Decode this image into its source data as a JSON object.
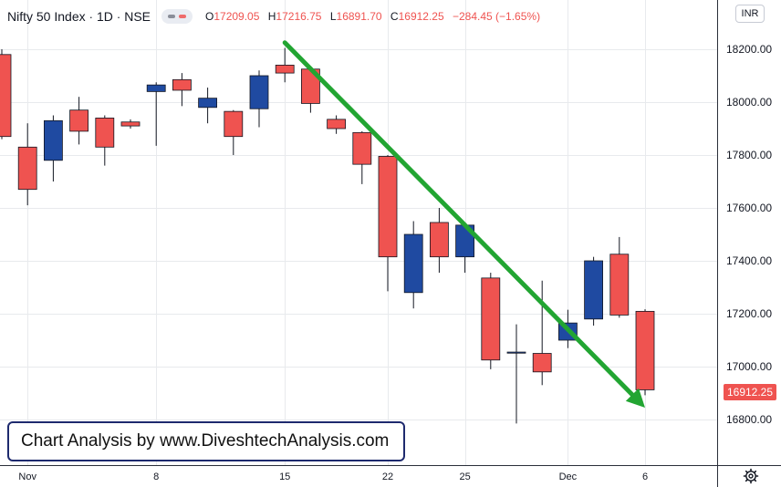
{
  "header": {
    "symbol": "Nifty 50 Index",
    "interval": "1D",
    "exchange": "NSE",
    "separator": "·",
    "open_label": "O",
    "open": "17209.05",
    "high_label": "H",
    "high": "17216.75",
    "low_label": "L",
    "low": "16891.70",
    "close_label": "C",
    "close": "16912.25",
    "change": "−284.45 (−1.65%)"
  },
  "currency_button": "INR",
  "last_price": "16912.25",
  "watermark": "Chart Analysis by www.DiveshtechAnalysis.com",
  "colors": {
    "up": "#1f4aa1",
    "down": "#ef5350",
    "trend_arrow": "#22a532",
    "grid": "#e8eaed",
    "axis_border": "#2a2e39"
  },
  "icons": {
    "settings": "gear-icon"
  },
  "chart_data": {
    "type": "candlestick",
    "ylim": [
      16620,
      18270
    ],
    "y_ticks": [
      {
        "value": 16800,
        "label": "16800.00"
      },
      {
        "value": 17000,
        "label": "17000.00"
      },
      {
        "value": 17200,
        "label": "17200.00"
      },
      {
        "value": 17400,
        "label": "17400.00"
      },
      {
        "value": 17600,
        "label": "17600.00"
      },
      {
        "value": 17800,
        "label": "17800.00"
      },
      {
        "value": 18000,
        "label": "18000.00"
      },
      {
        "value": 18200,
        "label": "18200.00"
      }
    ],
    "x_ticks": [
      {
        "index": 1,
        "label": "Nov"
      },
      {
        "index": 6,
        "label": "8"
      },
      {
        "index": 11,
        "label": "15"
      },
      {
        "index": 15,
        "label": "22"
      },
      {
        "index": 18,
        "label": "25"
      },
      {
        "index": 22,
        "label": "Dec"
      },
      {
        "index": 25,
        "label": "6"
      }
    ],
    "candles": [
      {
        "o": 18180,
        "h": 18200,
        "l": 17860,
        "c": 17870
      },
      {
        "o": 17830,
        "h": 17920,
        "l": 17610,
        "c": 17670
      },
      {
        "o": 17780,
        "h": 17950,
        "l": 17700,
        "c": 17930
      },
      {
        "o": 17970,
        "h": 18020,
        "l": 17840,
        "c": 17890
      },
      {
        "o": 17940,
        "h": 17950,
        "l": 17760,
        "c": 17830
      },
      {
        "o": 17925,
        "h": 17935,
        "l": 17900,
        "c": 17910
      },
      {
        "o": 18040,
        "h": 18075,
        "l": 17835,
        "c": 18065
      },
      {
        "o": 18085,
        "h": 18110,
        "l": 17985,
        "c": 18045
      },
      {
        "o": 17980,
        "h": 18055,
        "l": 17920,
        "c": 18015
      },
      {
        "o": 17965,
        "h": 17970,
        "l": 17800,
        "c": 17870
      },
      {
        "o": 17975,
        "h": 18120,
        "l": 17905,
        "c": 18100
      },
      {
        "o": 18140,
        "h": 18205,
        "l": 18075,
        "c": 18110
      },
      {
        "o": 18125,
        "h": 18130,
        "l": 17960,
        "c": 17995
      },
      {
        "o": 17935,
        "h": 17950,
        "l": 17880,
        "c": 17900
      },
      {
        "o": 17885,
        "h": 17890,
        "l": 17690,
        "c": 17765
      },
      {
        "o": 17795,
        "h": 17800,
        "l": 17285,
        "c": 17415
      },
      {
        "o": 17280,
        "h": 17550,
        "l": 17220,
        "c": 17500
      },
      {
        "o": 17545,
        "h": 17600,
        "l": 17355,
        "c": 17415
      },
      {
        "o": 17415,
        "h": 17545,
        "l": 17355,
        "c": 17535
      },
      {
        "o": 17335,
        "h": 17355,
        "l": 16990,
        "c": 17025
      },
      {
        "o": 17055,
        "h": 17160,
        "l": 16785,
        "c": 17055
      },
      {
        "o": 17050,
        "h": 17325,
        "l": 16930,
        "c": 16980
      },
      {
        "o": 17100,
        "h": 17215,
        "l": 17070,
        "c": 17165
      },
      {
        "o": 17180,
        "h": 17415,
        "l": 17155,
        "c": 17400
      },
      {
        "o": 17425,
        "h": 17490,
        "l": 17185,
        "c": 17195
      },
      {
        "o": 17209.05,
        "h": 17216.75,
        "l": 16891.7,
        "c": 16912.25
      }
    ],
    "trend_arrow": {
      "from": {
        "index": 11,
        "value": 18225
      },
      "to": {
        "index": 25,
        "value": 16845
      }
    }
  }
}
